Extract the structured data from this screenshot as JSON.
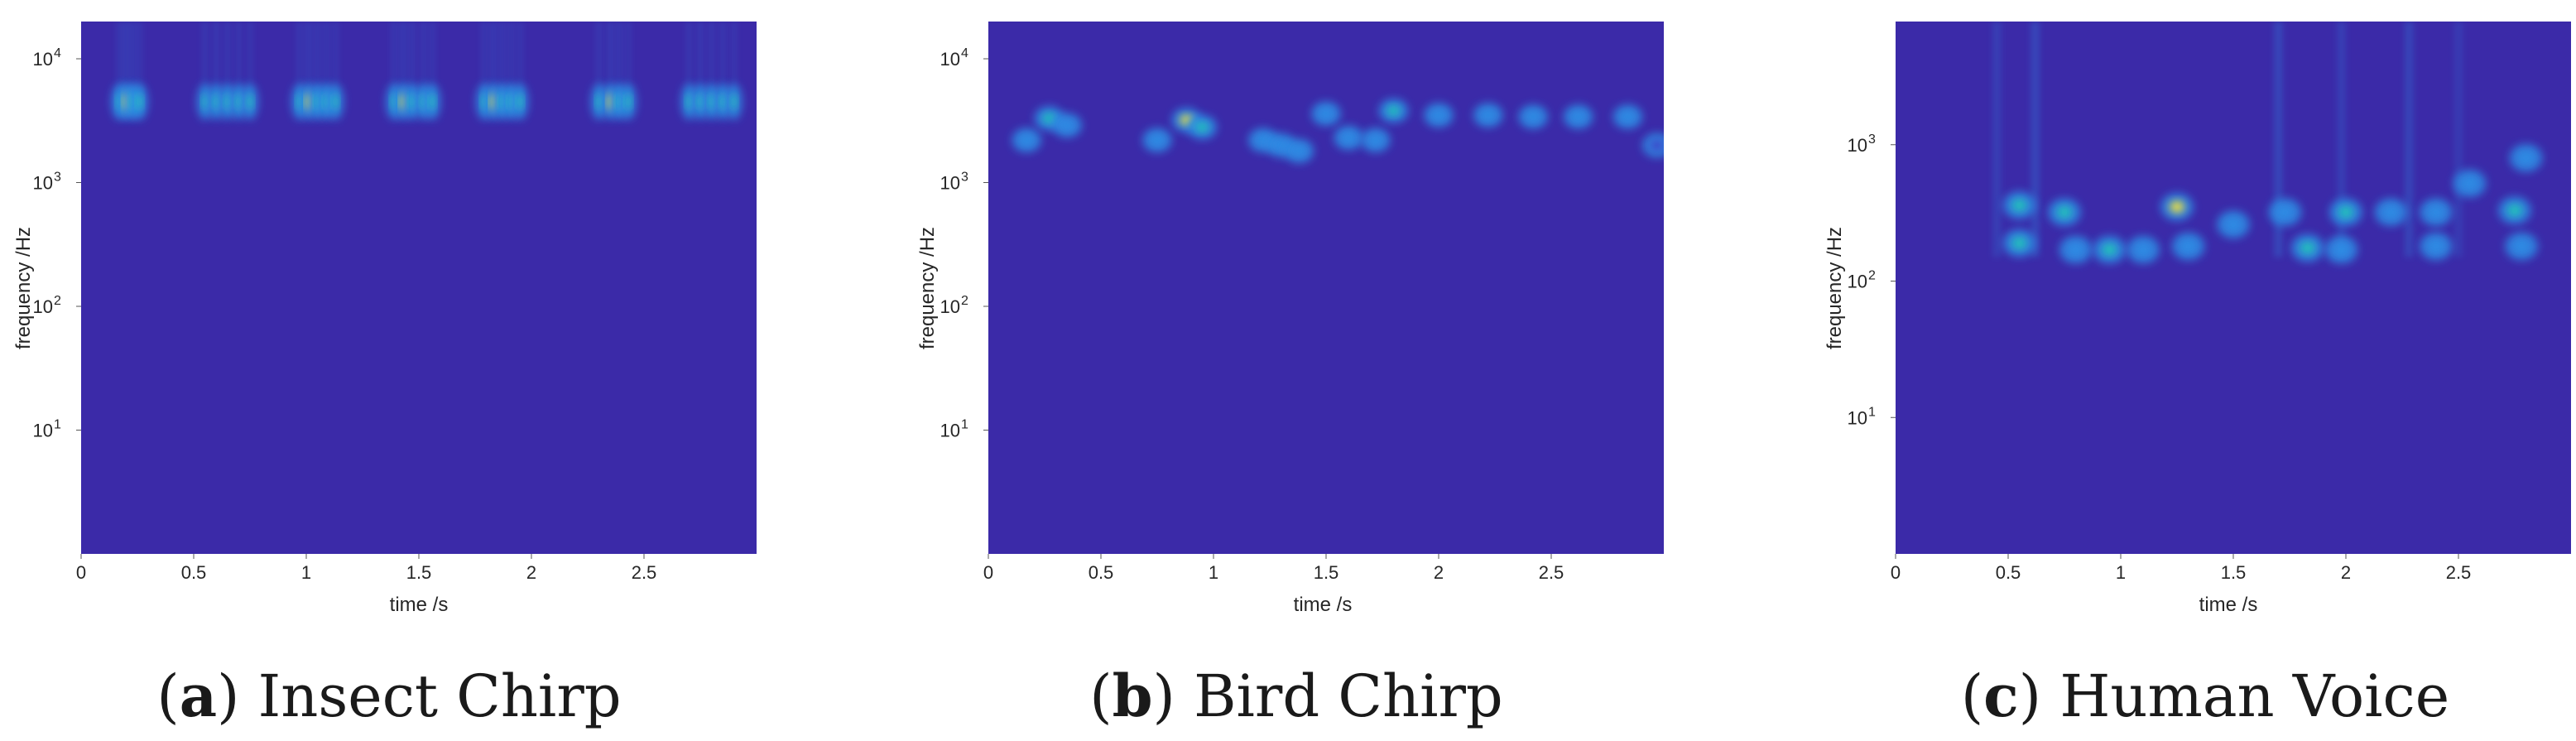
{
  "colors": {
    "background": "#3b2aa8",
    "low": "#3f43c9",
    "mid": "#2f8fe6",
    "high": "#20c9b8",
    "peak": "#f5e63a"
  },
  "chart_data": [
    {
      "type": "heatmap",
      "panel_letter": "a",
      "caption": "Insect Chirp",
      "xlabel": "time /s",
      "ylabel": "frequency /Hz",
      "yscale": "log",
      "xlim": [
        0,
        3.0
      ],
      "ylim": [
        1,
        20000
      ],
      "x_ticks": [
        {
          "v": 0,
          "label": "0"
        },
        {
          "v": 0.5,
          "label": "0.5"
        },
        {
          "v": 1,
          "label": "1"
        },
        {
          "v": 1.5,
          "label": "1.5"
        },
        {
          "v": 2,
          "label": "2"
        },
        {
          "v": 2.5,
          "label": "2.5"
        }
      ],
      "y_ticks": [
        {
          "v": 10,
          "base": "10",
          "exp": "1"
        },
        {
          "v": 100,
          "base": "10",
          "exp": "2"
        },
        {
          "v": 1000,
          "base": "10",
          "exp": "3"
        },
        {
          "v": 10000,
          "base": "10",
          "exp": "4"
        }
      ],
      "blobs": [
        {
          "t": 0.17,
          "f": 4500,
          "i": 0.8
        },
        {
          "t": 0.2,
          "f": 4500,
          "i": 1.0
        },
        {
          "t": 0.23,
          "f": 4500,
          "i": 0.85
        },
        {
          "t": 0.26,
          "f": 4500,
          "i": 0.7
        },
        {
          "t": 0.55,
          "f": 4500,
          "i": 0.75
        },
        {
          "t": 0.6,
          "f": 4500,
          "i": 0.85
        },
        {
          "t": 0.65,
          "f": 4500,
          "i": 0.8
        },
        {
          "t": 0.7,
          "f": 4500,
          "i": 0.75
        },
        {
          "t": 0.75,
          "f": 4500,
          "i": 0.7
        },
        {
          "t": 0.97,
          "f": 4500,
          "i": 0.8
        },
        {
          "t": 1.01,
          "f": 4500,
          "i": 1.0
        },
        {
          "t": 1.05,
          "f": 4500,
          "i": 0.85
        },
        {
          "t": 1.09,
          "f": 4500,
          "i": 0.8
        },
        {
          "t": 1.13,
          "f": 4500,
          "i": 0.7
        },
        {
          "t": 1.39,
          "f": 4500,
          "i": 0.8
        },
        {
          "t": 1.43,
          "f": 4500,
          "i": 0.95
        },
        {
          "t": 1.47,
          "f": 4500,
          "i": 0.85
        },
        {
          "t": 1.52,
          "f": 4500,
          "i": 0.8
        },
        {
          "t": 1.56,
          "f": 4500,
          "i": 0.7
        },
        {
          "t": 1.79,
          "f": 4500,
          "i": 0.8
        },
        {
          "t": 1.83,
          "f": 4500,
          "i": 0.95
        },
        {
          "t": 1.87,
          "f": 4500,
          "i": 0.85
        },
        {
          "t": 1.91,
          "f": 4500,
          "i": 0.8
        },
        {
          "t": 1.95,
          "f": 4500,
          "i": 0.7
        },
        {
          "t": 2.3,
          "f": 4500,
          "i": 0.8
        },
        {
          "t": 2.35,
          "f": 4500,
          "i": 0.95
        },
        {
          "t": 2.39,
          "f": 4500,
          "i": 0.85
        },
        {
          "t": 2.43,
          "f": 4500,
          "i": 0.7
        },
        {
          "t": 2.7,
          "f": 4500,
          "i": 0.75
        },
        {
          "t": 2.75,
          "f": 4500,
          "i": 0.85
        },
        {
          "t": 2.8,
          "f": 4500,
          "i": 0.8
        },
        {
          "t": 2.85,
          "f": 4500,
          "i": 0.75
        },
        {
          "t": 2.9,
          "f": 4500,
          "i": 0.7
        }
      ]
    },
    {
      "type": "heatmap",
      "panel_letter": "b",
      "caption": "Bird Chirp",
      "xlabel": "time /s",
      "ylabel": "frequency /Hz",
      "yscale": "log",
      "xlim": [
        0,
        3.0
      ],
      "ylim": [
        1,
        20000
      ],
      "x_ticks": [
        {
          "v": 0,
          "label": "0"
        },
        {
          "v": 0.5,
          "label": "0.5"
        },
        {
          "v": 1,
          "label": "1"
        },
        {
          "v": 1.5,
          "label": "1.5"
        },
        {
          "v": 2,
          "label": "2"
        },
        {
          "v": 2.5,
          "label": "2.5"
        }
      ],
      "y_ticks": [
        {
          "v": 10,
          "base": "10",
          "exp": "1"
        },
        {
          "v": 100,
          "base": "10",
          "exp": "2"
        },
        {
          "v": 1000,
          "base": "10",
          "exp": "3"
        },
        {
          "v": 10000,
          "base": "10",
          "exp": "4"
        }
      ],
      "blobs": [
        {
          "t": 0.17,
          "f": 2200,
          "i": 0.5
        },
        {
          "t": 0.27,
          "f": 3300,
          "i": 0.6
        },
        {
          "t": 0.35,
          "f": 2900,
          "i": 0.5
        },
        {
          "t": 0.75,
          "f": 2200,
          "i": 0.45
        },
        {
          "t": 0.88,
          "f": 3200,
          "i": 1.0
        },
        {
          "t": 0.95,
          "f": 2800,
          "i": 0.6
        },
        {
          "t": 1.22,
          "f": 2200,
          "i": 0.5
        },
        {
          "t": 1.3,
          "f": 2000,
          "i": 0.45
        },
        {
          "t": 1.38,
          "f": 1800,
          "i": 0.4
        },
        {
          "t": 1.5,
          "f": 3600,
          "i": 0.4
        },
        {
          "t": 1.6,
          "f": 2300,
          "i": 0.35
        },
        {
          "t": 1.72,
          "f": 2200,
          "i": 0.4
        },
        {
          "t": 1.8,
          "f": 3800,
          "i": 0.65
        },
        {
          "t": 2.0,
          "f": 3500,
          "i": 0.55
        },
        {
          "t": 2.22,
          "f": 3500,
          "i": 0.55
        },
        {
          "t": 2.42,
          "f": 3400,
          "i": 0.5
        },
        {
          "t": 2.62,
          "f": 3400,
          "i": 0.5
        },
        {
          "t": 2.84,
          "f": 3400,
          "i": 0.55
        },
        {
          "t": 2.97,
          "f": 2000,
          "i": 0.3
        }
      ]
    },
    {
      "type": "heatmap",
      "panel_letter": "c",
      "caption": "Human Voice",
      "xlabel": "time /s",
      "ylabel": "frequency /Hz",
      "yscale": "log",
      "xlim": [
        0,
        3.0
      ],
      "ylim": [
        1,
        8000
      ],
      "x_ticks": [
        {
          "v": 0,
          "label": "0"
        },
        {
          "v": 0.5,
          "label": "0.5"
        },
        {
          "v": 1,
          "label": "1"
        },
        {
          "v": 1.5,
          "label": "1.5"
        },
        {
          "v": 2,
          "label": "2"
        },
        {
          "v": 2.5,
          "label": "2.5"
        }
      ],
      "y_ticks": [
        {
          "v": 10,
          "base": "10",
          "exp": "1"
        },
        {
          "v": 100,
          "base": "10",
          "exp": "2"
        },
        {
          "v": 1000,
          "base": "10",
          "exp": "3"
        }
      ],
      "blobs": [
        {
          "t": 0.55,
          "f": 360,
          "i": 0.85
        },
        {
          "t": 0.55,
          "f": 190,
          "i": 0.6
        },
        {
          "t": 0.75,
          "f": 320,
          "i": 0.6
        },
        {
          "t": 0.8,
          "f": 170,
          "i": 0.55
        },
        {
          "t": 0.95,
          "f": 170,
          "i": 0.6
        },
        {
          "t": 1.1,
          "f": 170,
          "i": 0.55
        },
        {
          "t": 1.25,
          "f": 350,
          "i": 0.9
        },
        {
          "t": 1.3,
          "f": 180,
          "i": 0.55
        },
        {
          "t": 1.5,
          "f": 260,
          "i": 0.5
        },
        {
          "t": 1.73,
          "f": 320,
          "i": 0.45
        },
        {
          "t": 1.83,
          "f": 175,
          "i": 0.6
        },
        {
          "t": 1.98,
          "f": 170,
          "i": 0.5
        },
        {
          "t": 2.0,
          "f": 320,
          "i": 0.6
        },
        {
          "t": 2.2,
          "f": 320,
          "i": 0.5
        },
        {
          "t": 2.4,
          "f": 320,
          "i": 0.5
        },
        {
          "t": 2.4,
          "f": 180,
          "i": 0.5
        },
        {
          "t": 2.55,
          "f": 520,
          "i": 0.35
        },
        {
          "t": 2.75,
          "f": 330,
          "i": 0.8
        },
        {
          "t": 2.78,
          "f": 180,
          "i": 0.5
        },
        {
          "t": 2.8,
          "f": 800,
          "i": 0.35
        }
      ],
      "streaks": [
        {
          "t": 0.45,
          "i": 0.22
        },
        {
          "t": 0.62,
          "i": 0.3
        },
        {
          "t": 1.7,
          "i": 0.3
        },
        {
          "t": 1.98,
          "i": 0.22
        },
        {
          "t": 2.28,
          "i": 0.28
        },
        {
          "t": 2.5,
          "i": 0.18
        }
      ]
    }
  ]
}
